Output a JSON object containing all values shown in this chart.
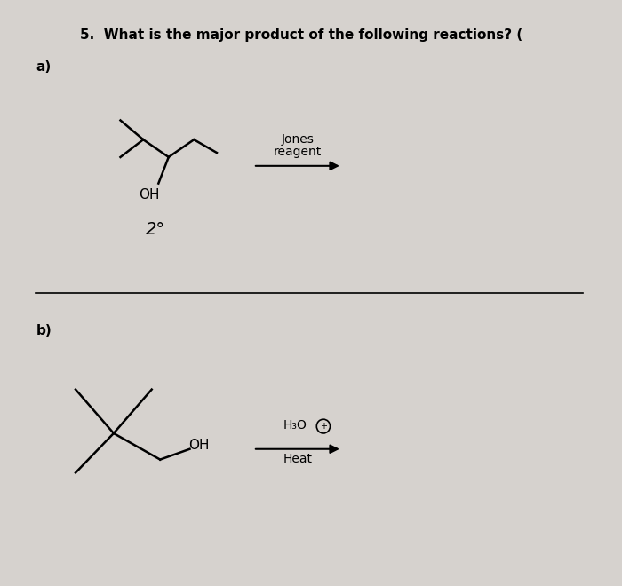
{
  "title": "5.  What is the major product of the following reactions? (",
  "title_fontsize": 11,
  "bg_color": "#d6d2ce",
  "label_a": "a)",
  "label_b": "b)",
  "jones_line1": "Jones",
  "jones_line2": "reagent",
  "h3o_label": "H₃O",
  "heat_label": "Heat",
  "oh_label": "OH",
  "two_deg_label": "2°"
}
